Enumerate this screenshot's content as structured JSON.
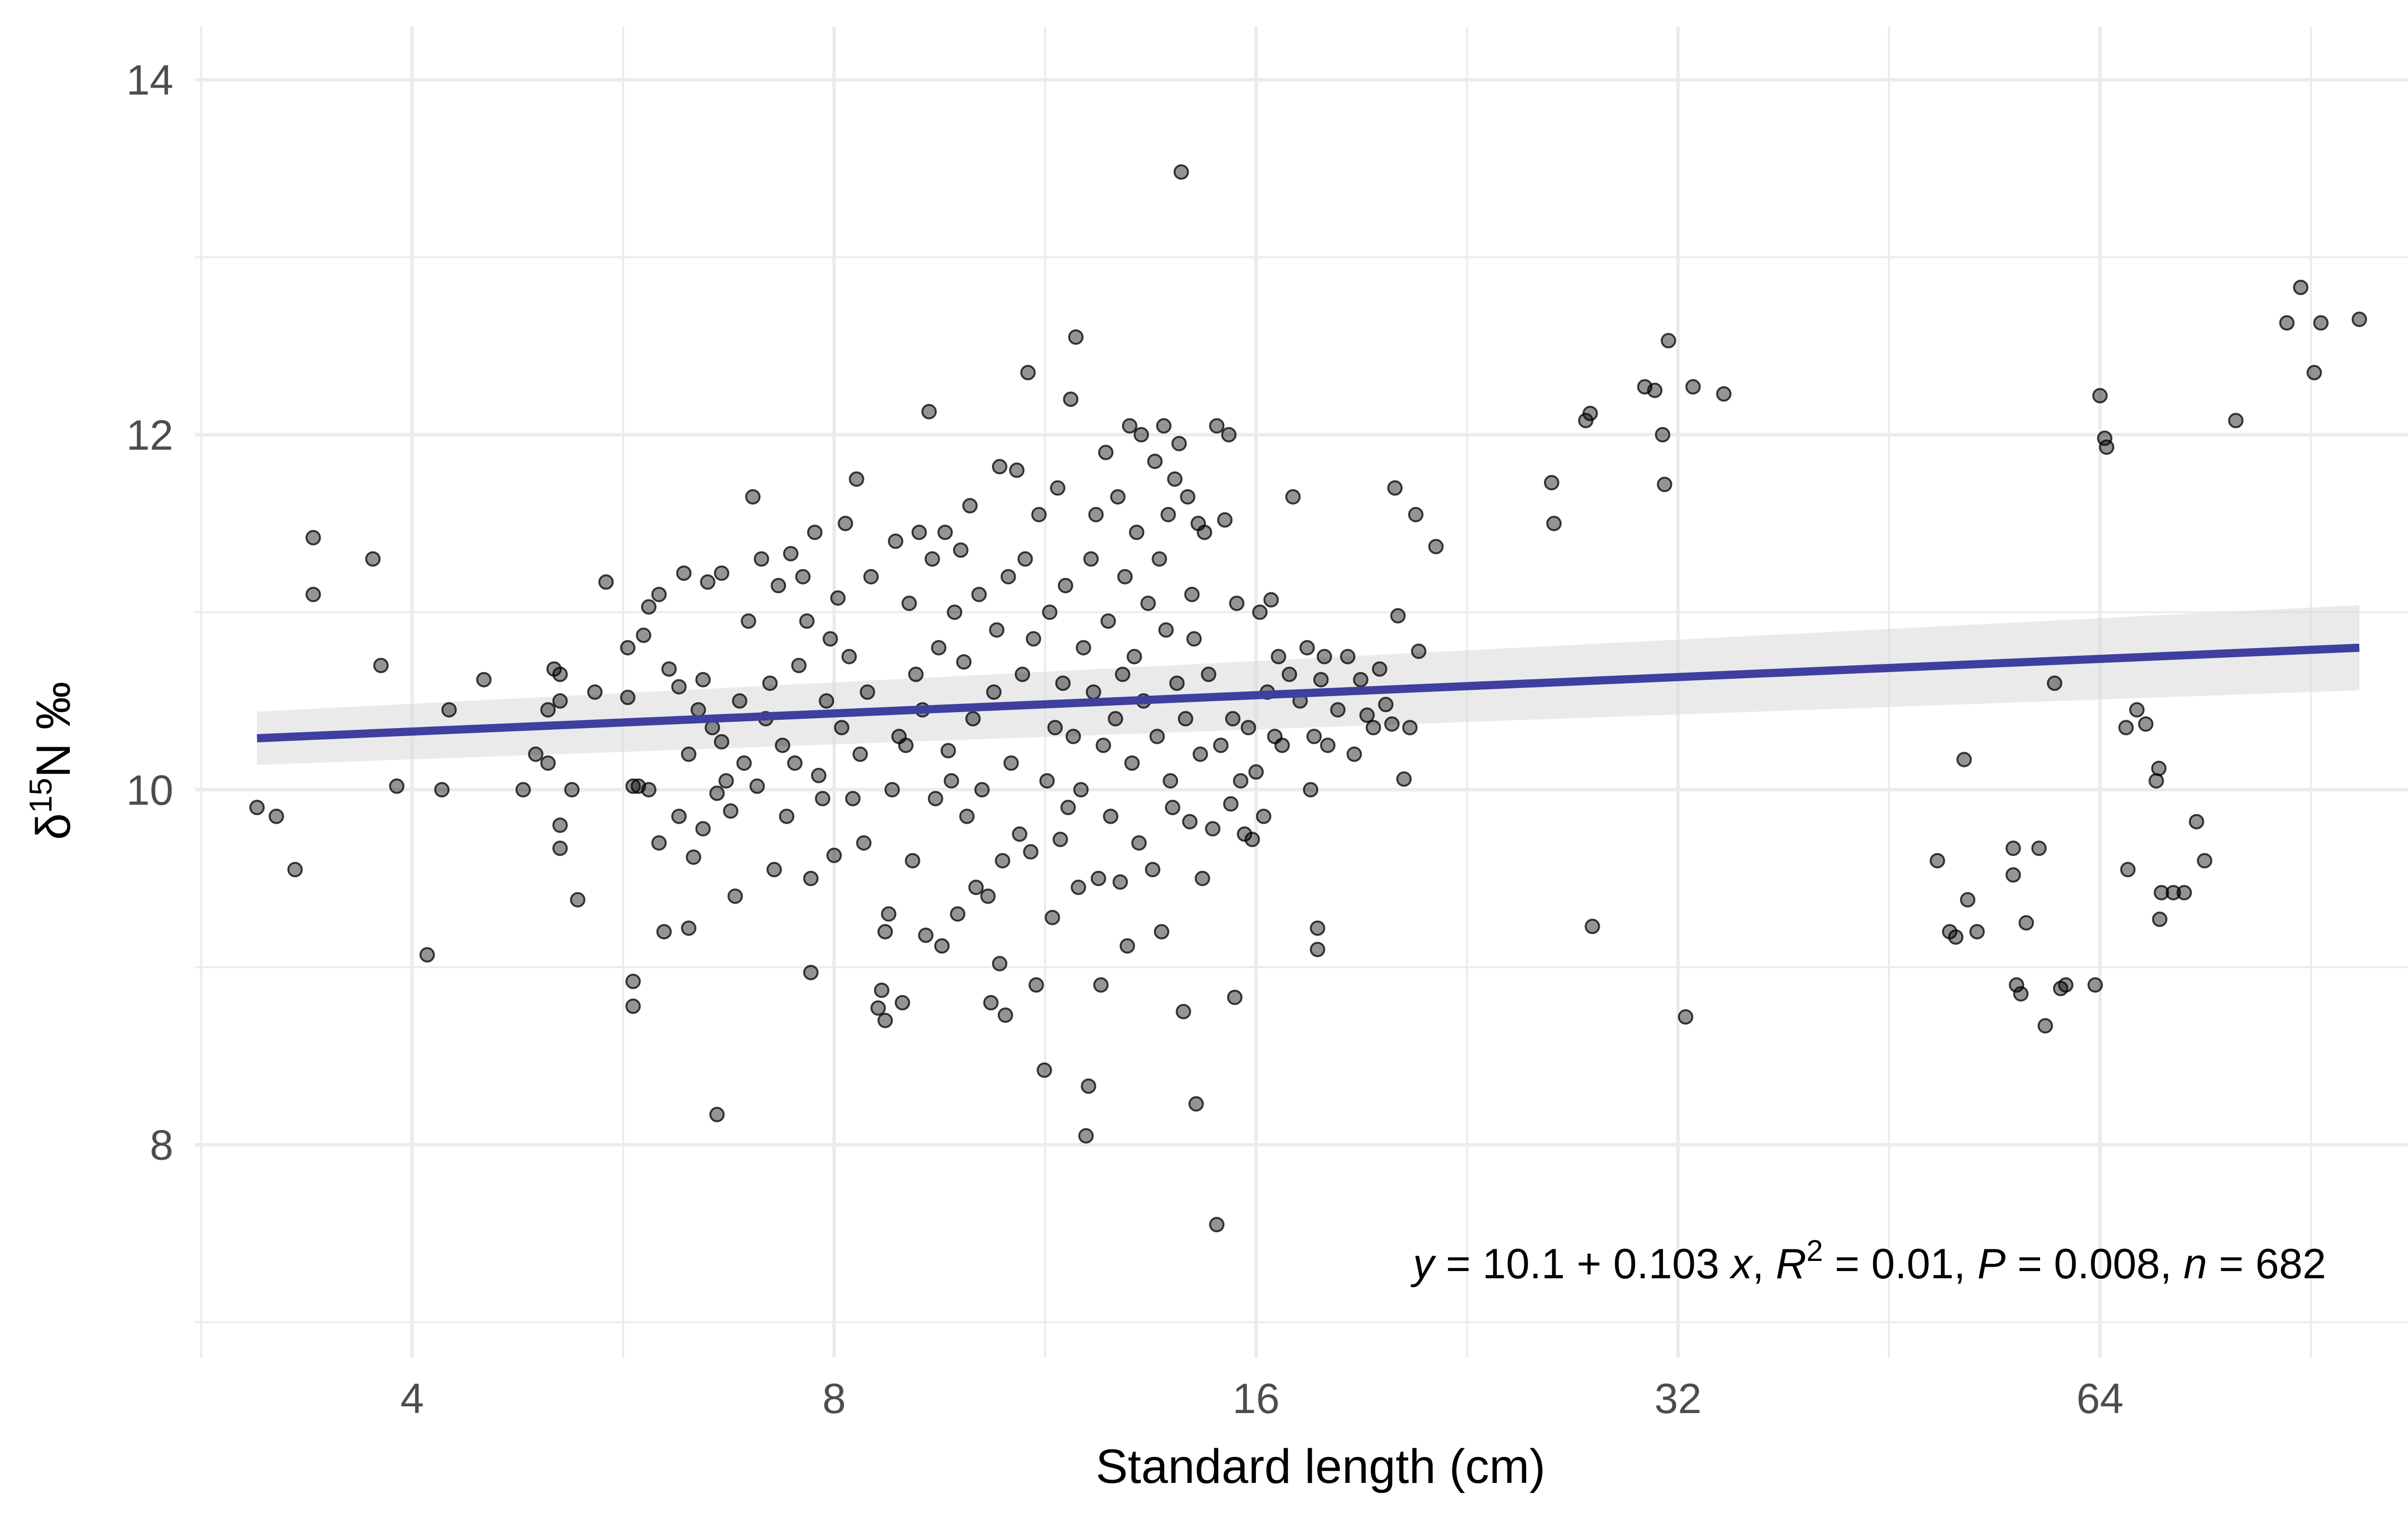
{
  "chart_data": {
    "type": "scatter",
    "title": "",
    "xlabel": "Standard length (cm)",
    "ylabel": {
      "main": "δ",
      "sup": "15",
      "rest": "N ‰"
    },
    "x_scale": "log2",
    "xlim": [
      2.8,
      110
    ],
    "ylim": [
      6.8,
      14.3
    ],
    "x_ticks": [
      4,
      8,
      16,
      32,
      64
    ],
    "x_tick_labels": [
      "4",
      "8",
      "16",
      "32",
      "64"
    ],
    "y_ticks": [
      8,
      10,
      12,
      14
    ],
    "y_tick_labels": [
      "8",
      "10",
      "12",
      "14"
    ],
    "grid": true,
    "legend": "none",
    "colors": {
      "points": "#000000",
      "line": "#3f3f9f",
      "band": "#d9d9d9",
      "grid": "#ebebeb"
    },
    "annotation": {
      "y": "y",
      "eq": " = 10.1 + 0.103 ",
      "x": "x",
      "sep1": ", ",
      "R": "R",
      "sup2": "2",
      "r2": " = 0.01, ",
      "P": "P",
      "pval": " = 0.008, ",
      "n": "n",
      "nval": " = 682"
    },
    "fit": {
      "x": [
        3.1,
        98
      ],
      "y": [
        10.29,
        10.8
      ],
      "ci_low": [
        10.14,
        10.56
      ],
      "ci_high": [
        10.44,
        11.04
      ]
    },
    "points": [
      [
        3.1,
        9.9
      ],
      [
        3.2,
        9.85
      ],
      [
        3.3,
        9.55
      ],
      [
        3.4,
        11.42
      ],
      [
        3.4,
        11.1
      ],
      [
        3.75,
        11.3
      ],
      [
        3.8,
        10.7
      ],
      [
        3.9,
        10.02
      ],
      [
        4.1,
        9.07
      ],
      [
        4.2,
        10.0
      ],
      [
        4.25,
        10.45
      ],
      [
        4.5,
        10.62
      ],
      [
        4.8,
        10.0
      ],
      [
        4.9,
        10.2
      ],
      [
        5.0,
        10.15
      ],
      [
        5.0,
        10.45
      ],
      [
        5.05,
        10.68
      ],
      [
        5.1,
        10.65
      ],
      [
        5.1,
        10.5
      ],
      [
        5.1,
        9.8
      ],
      [
        5.1,
        9.67
      ],
      [
        5.2,
        10.0
      ],
      [
        5.25,
        9.38
      ],
      [
        5.4,
        10.55
      ],
      [
        5.5,
        11.17
      ],
      [
        5.7,
        10.52
      ],
      [
        5.7,
        10.8
      ],
      [
        5.75,
        10.02
      ],
      [
        5.75,
        8.92
      ],
      [
        5.75,
        8.78
      ],
      [
        5.8,
        10.02
      ],
      [
        5.85,
        10.87
      ],
      [
        5.9,
        11.03
      ],
      [
        5.9,
        10.0
      ],
      [
        6.0,
        11.1
      ],
      [
        6.0,
        9.7
      ],
      [
        6.05,
        9.2
      ],
      [
        6.1,
        10.68
      ],
      [
        6.2,
        10.58
      ],
      [
        6.2,
        9.85
      ],
      [
        6.25,
        11.22
      ],
      [
        6.3,
        10.2
      ],
      [
        6.3,
        9.22
      ],
      [
        6.35,
        9.62
      ],
      [
        6.4,
        10.45
      ],
      [
        6.45,
        10.62
      ],
      [
        6.45,
        9.78
      ],
      [
        6.5,
        11.17
      ],
      [
        6.55,
        10.35
      ],
      [
        6.6,
        9.98
      ],
      [
        6.6,
        8.17
      ],
      [
        6.65,
        11.22
      ],
      [
        6.65,
        10.27
      ],
      [
        6.7,
        10.05
      ],
      [
        6.75,
        9.88
      ],
      [
        6.8,
        9.4
      ],
      [
        6.85,
        10.5
      ],
      [
        6.9,
        10.15
      ],
      [
        6.95,
        10.95
      ],
      [
        7.0,
        11.65
      ],
      [
        7.05,
        10.02
      ],
      [
        7.1,
        11.3
      ],
      [
        7.15,
        10.4
      ],
      [
        7.2,
        10.6
      ],
      [
        7.25,
        9.55
      ],
      [
        7.3,
        11.15
      ],
      [
        7.35,
        10.25
      ],
      [
        7.4,
        9.85
      ],
      [
        7.45,
        11.33
      ],
      [
        7.5,
        10.15
      ],
      [
        7.55,
        10.7
      ],
      [
        7.6,
        11.2
      ],
      [
        7.65,
        10.95
      ],
      [
        7.7,
        9.5
      ],
      [
        7.7,
        8.97
      ],
      [
        7.75,
        11.45
      ],
      [
        7.8,
        10.08
      ],
      [
        7.85,
        9.95
      ],
      [
        7.9,
        10.5
      ],
      [
        7.95,
        10.85
      ],
      [
        8.0,
        9.63
      ],
      [
        8.05,
        11.08
      ],
      [
        8.1,
        10.35
      ],
      [
        8.15,
        11.5
      ],
      [
        8.2,
        10.75
      ],
      [
        8.25,
        9.95
      ],
      [
        8.3,
        11.75
      ],
      [
        8.35,
        10.2
      ],
      [
        8.4,
        9.7
      ],
      [
        8.45,
        10.55
      ],
      [
        8.5,
        11.2
      ],
      [
        8.6,
        8.77
      ],
      [
        8.65,
        8.87
      ],
      [
        8.7,
        9.2
      ],
      [
        8.7,
        8.7
      ],
      [
        8.75,
        9.3
      ],
      [
        8.8,
        10.0
      ],
      [
        8.85,
        11.4
      ],
      [
        8.9,
        10.3
      ],
      [
        8.95,
        8.8
      ],
      [
        9.0,
        10.25
      ],
      [
        9.05,
        11.05
      ],
      [
        9.1,
        9.6
      ],
      [
        9.15,
        10.65
      ],
      [
        9.2,
        11.45
      ],
      [
        9.25,
        10.45
      ],
      [
        9.3,
        9.18
      ],
      [
        9.35,
        12.13
      ],
      [
        9.4,
        11.3
      ],
      [
        9.45,
        9.95
      ],
      [
        9.5,
        10.8
      ],
      [
        9.55,
        9.12
      ],
      [
        9.6,
        11.45
      ],
      [
        9.65,
        10.22
      ],
      [
        9.7,
        10.05
      ],
      [
        9.75,
        11.0
      ],
      [
        9.8,
        9.3
      ],
      [
        9.85,
        11.35
      ],
      [
        9.9,
        10.72
      ],
      [
        9.95,
        9.85
      ],
      [
        10.0,
        11.6
      ],
      [
        10.05,
        10.4
      ],
      [
        10.1,
        9.45
      ],
      [
        10.15,
        11.1
      ],
      [
        10.2,
        10.0
      ],
      [
        10.3,
        9.4
      ],
      [
        10.35,
        8.8
      ],
      [
        10.4,
        10.55
      ],
      [
        10.45,
        10.9
      ],
      [
        10.5,
        11.82
      ],
      [
        10.5,
        9.02
      ],
      [
        10.55,
        9.6
      ],
      [
        10.6,
        8.73
      ],
      [
        10.65,
        11.2
      ],
      [
        10.7,
        10.15
      ],
      [
        10.8,
        11.8
      ],
      [
        10.85,
        9.75
      ],
      [
        10.9,
        10.65
      ],
      [
        10.95,
        11.3
      ],
      [
        11.0,
        12.35
      ],
      [
        11.05,
        9.65
      ],
      [
        11.1,
        10.85
      ],
      [
        11.15,
        8.9
      ],
      [
        11.2,
        11.55
      ],
      [
        11.3,
        8.42
      ],
      [
        11.35,
        10.05
      ],
      [
        11.4,
        11.0
      ],
      [
        11.45,
        9.28
      ],
      [
        11.5,
        10.35
      ],
      [
        11.55,
        11.7
      ],
      [
        11.6,
        9.72
      ],
      [
        11.65,
        10.6
      ],
      [
        11.7,
        11.15
      ],
      [
        11.75,
        9.9
      ],
      [
        11.8,
        12.2
      ],
      [
        11.85,
        10.3
      ],
      [
        11.9,
        12.55
      ],
      [
        11.95,
        9.45
      ],
      [
        12.0,
        10.0
      ],
      [
        12.05,
        10.8
      ],
      [
        12.1,
        8.05
      ],
      [
        12.15,
        8.33
      ],
      [
        12.2,
        11.3
      ],
      [
        12.25,
        10.55
      ],
      [
        12.3,
        11.55
      ],
      [
        12.35,
        9.5
      ],
      [
        12.4,
        8.9
      ],
      [
        12.45,
        10.25
      ],
      [
        12.5,
        11.9
      ],
      [
        12.55,
        10.95
      ],
      [
        12.6,
        9.85
      ],
      [
        12.7,
        10.4
      ],
      [
        12.75,
        11.65
      ],
      [
        12.8,
        9.48
      ],
      [
        12.85,
        10.65
      ],
      [
        12.9,
        11.2
      ],
      [
        12.95,
        9.12
      ],
      [
        13.0,
        12.05
      ],
      [
        13.05,
        10.15
      ],
      [
        13.1,
        10.75
      ],
      [
        13.15,
        11.45
      ],
      [
        13.2,
        9.7
      ],
      [
        13.25,
        12.0
      ],
      [
        13.3,
        10.5
      ],
      [
        13.4,
        11.05
      ],
      [
        13.5,
        9.55
      ],
      [
        13.55,
        11.85
      ],
      [
        13.6,
        10.3
      ],
      [
        13.65,
        11.3
      ],
      [
        13.7,
        9.2
      ],
      [
        13.75,
        12.05
      ],
      [
        13.8,
        10.9
      ],
      [
        13.85,
        11.55
      ],
      [
        13.9,
        10.05
      ],
      [
        13.95,
        9.9
      ],
      [
        14.0,
        11.75
      ],
      [
        14.05,
        10.6
      ],
      [
        14.1,
        11.95
      ],
      [
        14.15,
        13.48
      ],
      [
        14.2,
        8.75
      ],
      [
        14.25,
        10.4
      ],
      [
        14.3,
        11.65
      ],
      [
        14.35,
        9.82
      ],
      [
        14.4,
        11.1
      ],
      [
        14.45,
        10.85
      ],
      [
        14.5,
        8.23
      ],
      [
        14.55,
        11.5
      ],
      [
        14.6,
        10.2
      ],
      [
        14.65,
        9.5
      ],
      [
        14.7,
        11.45
      ],
      [
        14.8,
        10.65
      ],
      [
        14.9,
        9.78
      ],
      [
        15.0,
        7.55
      ],
      [
        15.0,
        12.05
      ],
      [
        15.1,
        10.25
      ],
      [
        15.2,
        11.52
      ],
      [
        15.3,
        12.0
      ],
      [
        15.35,
        9.92
      ],
      [
        15.4,
        10.4
      ],
      [
        15.45,
        8.83
      ],
      [
        15.5,
        11.05
      ],
      [
        15.6,
        10.05
      ],
      [
        15.7,
        9.75
      ],
      [
        15.8,
        10.35
      ],
      [
        15.9,
        9.72
      ],
      [
        16.0,
        10.1
      ],
      [
        16.1,
        11.0
      ],
      [
        16.2,
        9.85
      ],
      [
        16.3,
        10.55
      ],
      [
        16.4,
        11.07
      ],
      [
        16.5,
        10.3
      ],
      [
        16.6,
        10.75
      ],
      [
        16.7,
        10.25
      ],
      [
        16.9,
        10.65
      ],
      [
        17.0,
        11.65
      ],
      [
        17.2,
        10.5
      ],
      [
        17.4,
        10.8
      ],
      [
        17.5,
        10.0
      ],
      [
        17.6,
        10.3
      ],
      [
        17.7,
        9.22
      ],
      [
        17.7,
        9.1
      ],
      [
        17.8,
        10.62
      ],
      [
        17.9,
        10.75
      ],
      [
        18.0,
        10.25
      ],
      [
        18.3,
        10.45
      ],
      [
        18.6,
        10.75
      ],
      [
        18.8,
        10.2
      ],
      [
        19.0,
        10.62
      ],
      [
        19.2,
        10.42
      ],
      [
        19.4,
        10.35
      ],
      [
        19.6,
        10.68
      ],
      [
        19.8,
        10.48
      ],
      [
        20.0,
        10.37
      ],
      [
        20.1,
        11.7
      ],
      [
        20.2,
        10.98
      ],
      [
        20.4,
        10.06
      ],
      [
        20.6,
        10.35
      ],
      [
        20.8,
        11.55
      ],
      [
        20.9,
        10.78
      ],
      [
        21.5,
        11.37
      ],
      [
        26.0,
        11.73
      ],
      [
        26.1,
        11.5
      ],
      [
        27.5,
        12.08
      ],
      [
        27.7,
        12.12
      ],
      [
        27.8,
        9.23
      ],
      [
        30.3,
        12.27
      ],
      [
        30.8,
        12.25
      ],
      [
        31.2,
        12.0
      ],
      [
        31.3,
        11.72
      ],
      [
        31.5,
        12.53
      ],
      [
        32.4,
        8.72
      ],
      [
        32.8,
        12.27
      ],
      [
        34.5,
        12.23
      ],
      [
        49.0,
        9.6
      ],
      [
        50.0,
        9.2
      ],
      [
        50.5,
        9.17
      ],
      [
        51.2,
        10.17
      ],
      [
        51.5,
        9.38
      ],
      [
        52.3,
        9.2
      ],
      [
        55.5,
        9.67
      ],
      [
        55.5,
        9.52
      ],
      [
        55.8,
        8.9
      ],
      [
        56.2,
        8.85
      ],
      [
        56.7,
        9.25
      ],
      [
        57.9,
        9.67
      ],
      [
        58.5,
        8.67
      ],
      [
        59.4,
        10.6
      ],
      [
        60.0,
        8.88
      ],
      [
        60.5,
        8.9
      ],
      [
        63.5,
        8.9
      ],
      [
        64.0,
        12.22
      ],
      [
        64.5,
        11.98
      ],
      [
        64.7,
        11.93
      ],
      [
        66.8,
        10.35
      ],
      [
        67.0,
        9.55
      ],
      [
        68.0,
        10.45
      ],
      [
        69.0,
        10.37
      ],
      [
        70.2,
        10.05
      ],
      [
        70.5,
        10.12
      ],
      [
        70.6,
        9.27
      ],
      [
        70.8,
        9.42
      ],
      [
        72.2,
        9.42
      ],
      [
        73.5,
        9.42
      ],
      [
        75.0,
        9.82
      ],
      [
        76.0,
        9.6
      ],
      [
        80.0,
        12.08
      ],
      [
        87.0,
        12.63
      ],
      [
        89.0,
        12.83
      ],
      [
        91.0,
        12.35
      ],
      [
        92.0,
        12.63
      ],
      [
        98.0,
        12.65
      ]
    ]
  }
}
